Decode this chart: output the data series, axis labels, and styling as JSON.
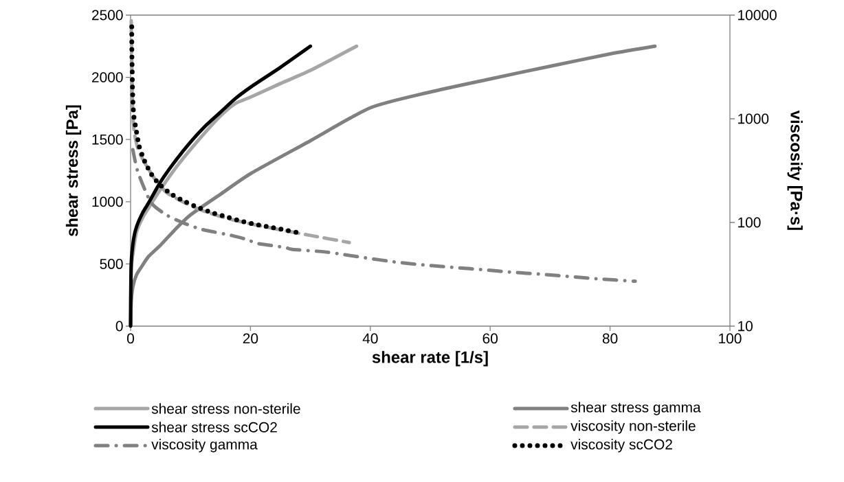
{
  "chart_data": {
    "type": "line",
    "xlabel": "shear rate [1/s]",
    "ylabel": "shear stress [Pa]",
    "y2label": "viscosity [Pa·s]",
    "xlim": [
      0,
      100
    ],
    "xticks": [
      0,
      20,
      40,
      60,
      80,
      100
    ],
    "ylim": [
      0,
      2500
    ],
    "yticks": [
      0,
      500,
      1000,
      1500,
      2000,
      2500
    ],
    "y2lim": [
      10,
      10000
    ],
    "y2ticks": [
      10,
      100,
      1000,
      10000
    ],
    "log": "y2",
    "grid": false,
    "legend": "bottom",
    "marker": "none",
    "series": [
      {
        "name": "shear stress non-sterile",
        "color": "#a6a6a6",
        "line_style": "solid",
        "x": [
          0,
          0.1,
          0.5,
          1,
          2,
          3,
          5,
          7.5,
          10,
          12.5,
          15,
          17.5,
          20,
          25,
          30,
          37.7
        ],
        "values": [
          0,
          450,
          620,
          760,
          870,
          950,
          1100,
          1270,
          1420,
          1560,
          1690,
          1790,
          1840,
          1950,
          2055,
          2250
        ]
      },
      {
        "name": "shear stress gamma",
        "color": "#808080",
        "line_style": "solid",
        "x": [
          0,
          0.1,
          0.4,
          1,
          2,
          3,
          5,
          7.5,
          10,
          15,
          20,
          30,
          40,
          50,
          60,
          70,
          80,
          87.5
        ],
        "values": [
          0,
          190,
          320,
          414,
          490,
          560,
          651,
          780,
          894,
          1060,
          1225,
          1490,
          1755,
          1882,
          1987,
          2089,
          2188,
          2250
        ]
      },
      {
        "name": "shear stress scCO2",
        "color": "#000000",
        "line_style": "solid",
        "x": [
          0,
          0.1,
          0.5,
          1,
          2,
          3,
          5,
          7.5,
          10,
          12.5,
          15,
          17.5,
          20,
          25,
          30
        ],
        "values": [
          0,
          500,
          700,
          800,
          910,
          990,
          1160,
          1330,
          1480,
          1610,
          1720,
          1830,
          1920,
          2080,
          2250
        ]
      },
      {
        "name": "viscosity non-sterile",
        "color": "#a6a6a6",
        "line_style": "dashed",
        "axis": "y2",
        "x": [
          0.1,
          0.2,
          0.35,
          0.6,
          1.2,
          2.2,
          4,
          6,
          9,
          12,
          16,
          20,
          25,
          30,
          36.5
        ],
        "values": [
          8800,
          3500,
          1200,
          750,
          520,
          390,
          265,
          195,
          155,
          130,
          110,
          97,
          85,
          75,
          64
        ]
      },
      {
        "name": "viscosity gamma",
        "color": "#808080",
        "line_style": "dashdot",
        "axis": "y2",
        "x": [
          0.38,
          1.2,
          3.4,
          6,
          8.6,
          11.8,
          16.8,
          19.6,
          21,
          25.7,
          27,
          32.4,
          35.6,
          38.7,
          44.5,
          49.4,
          54.2,
          59,
          63.7,
          68.4,
          73.2,
          77.9,
          84.2
        ],
        "values": [
          504,
          309,
          156,
          118,
          100,
          86,
          75,
          68,
          63,
          57.5,
          55,
          52,
          49,
          46,
          41.3,
          38.7,
          36.7,
          34.9,
          33.1,
          31.7,
          30.1,
          28.6,
          27.1
        ]
      },
      {
        "name": "viscosity scCO2",
        "color": "#000000",
        "line_style": "dotted",
        "axis": "y2",
        "x": [
          0.19,
          0.2,
          0.22,
          0.27,
          0.31,
          0.38,
          0.54,
          0.96,
          1.41,
          2.22,
          3.33,
          4.78,
          6.77,
          8.98,
          11.2,
          13.65,
          16.06,
          18.4,
          20.76,
          23.24,
          25.8,
          28.2
        ],
        "values": [
          7710,
          5540,
          3980,
          2865,
          2045,
          1472,
          1063,
          764,
          549,
          405,
          301,
          234,
          188,
          160,
          140,
          124,
          113,
          103,
          96,
          90,
          84.5,
          79
        ]
      }
    ]
  }
}
